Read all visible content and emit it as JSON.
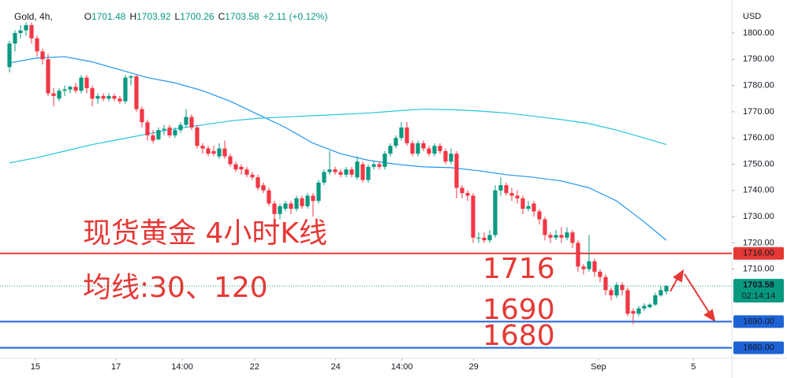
{
  "chart_data": {
    "type": "candlestick",
    "symbol": "Gold, 4h,",
    "ohlc_header": [
      {
        "label": "O",
        "value": "1701.48"
      },
      {
        "label": "H",
        "value": "1703.92"
      },
      {
        "label": "L",
        "value": "1700.26"
      },
      {
        "label": "C",
        "value": "1703.58"
      }
    ],
    "change": "+2.11 (+0.12%)",
    "currency": "USD",
    "up_color": "#089981",
    "down_color": "#f23645",
    "grid": false,
    "xlim": [
      -1.714,
      130.86
    ],
    "ylim": [
      1676,
      1812.6
    ],
    "yticks": [
      {
        "value": 1800,
        "label": "1800.00"
      },
      {
        "value": 1790,
        "label": "1790.00"
      },
      {
        "value": 1780,
        "label": "1780.00"
      },
      {
        "value": 1770,
        "label": "1770.00"
      },
      {
        "value": 1760,
        "label": "1760.00"
      },
      {
        "value": 1750,
        "label": "1750.00"
      },
      {
        "value": 1740,
        "label": "1740.00"
      },
      {
        "value": 1730,
        "label": "1730.00"
      },
      {
        "value": 1720,
        "label": "1720.00"
      },
      {
        "value": 1710,
        "label": "1710.00"
      }
    ],
    "xticks": [
      {
        "value": 4.7,
        "label": "15"
      },
      {
        "value": 19.3,
        "label": "17"
      },
      {
        "value": 31.3,
        "label": "14:00"
      },
      {
        "value": 44.4,
        "label": "22"
      },
      {
        "value": 59.1,
        "label": "24"
      },
      {
        "value": 71.1,
        "label": "14:00"
      },
      {
        "value": 84.1,
        "label": "29"
      },
      {
        "value": 106.7,
        "label": "Sep"
      },
      {
        "value": 123.9,
        "label": "5"
      }
    ],
    "candles": [
      [
        1787,
        1797,
        1785,
        1796
      ],
      [
        1796,
        1801,
        1793,
        1800
      ],
      [
        1800,
        1803,
        1798,
        1801
      ],
      [
        1801,
        1804,
        1799,
        1803
      ],
      [
        1803,
        1804,
        1796,
        1798
      ],
      [
        1798,
        1799,
        1791,
        1793
      ],
      [
        1793,
        1794,
        1788,
        1790
      ],
      [
        1790,
        1792,
        1776,
        1777
      ],
      [
        1777,
        1779,
        1772,
        1776
      ],
      [
        1775,
        1779,
        1774,
        1778
      ],
      [
        1778,
        1780,
        1776,
        1778.5
      ],
      [
        1778.5,
        1780,
        1777,
        1779.5
      ],
      [
        1779.5,
        1781,
        1777,
        1778
      ],
      [
        1778,
        1784,
        1777,
        1783
      ],
      [
        1783,
        1784,
        1777,
        1779
      ],
      [
        1779,
        1780,
        1772,
        1775
      ],
      [
        1775,
        1777,
        1773,
        1776
      ],
      [
        1776,
        1777,
        1774,
        1775
      ],
      [
        1775,
        1777,
        1774,
        1776
      ],
      [
        1776,
        1777,
        1774,
        1775
      ],
      [
        1775,
        1776,
        1773,
        1774
      ],
      [
        1774,
        1784,
        1773,
        1783
      ],
      [
        1783,
        1784,
        1780,
        1783.5
      ],
      [
        1783.5,
        1784,
        1770,
        1771
      ],
      [
        1771,
        1772,
        1764,
        1766
      ],
      [
        1766,
        1767,
        1759,
        1761
      ],
      [
        1761,
        1763,
        1758,
        1759
      ],
      [
        1759.5,
        1764,
        1759,
        1763
      ],
      [
        1763,
        1765,
        1761,
        1763.5
      ],
      [
        1764,
        1765,
        1760,
        1761
      ],
      [
        1761,
        1764,
        1760,
        1763
      ],
      [
        1763,
        1766,
        1762,
        1765
      ],
      [
        1765,
        1771,
        1764,
        1768
      ],
      [
        1768,
        1769,
        1763,
        1764
      ],
      [
        1764,
        1765,
        1756,
        1757
      ],
      [
        1757,
        1758,
        1754,
        1756
      ],
      [
        1756,
        1757,
        1753,
        1754
      ],
      [
        1755,
        1757,
        1753,
        1754
      ],
      [
        1753,
        1758,
        1752,
        1756
      ],
      [
        1756,
        1759,
        1752,
        1753
      ],
      [
        1753,
        1754,
        1749,
        1750
      ],
      [
        1750,
        1751,
        1747,
        1748
      ],
      [
        1749,
        1750,
        1746,
        1748
      ],
      [
        1748,
        1749,
        1745,
        1746
      ],
      [
        1746,
        1747,
        1744,
        1745
      ],
      [
        1745,
        1746,
        1740,
        1741
      ],
      [
        1742,
        1743,
        1739,
        1740
      ],
      [
        1740,
        1741,
        1734,
        1735
      ],
      [
        1735,
        1736,
        1728,
        1731
      ],
      [
        1731,
        1735,
        1729,
        1734
      ],
      [
        1733,
        1736,
        1732,
        1735
      ],
      [
        1735,
        1736,
        1731,
        1733
      ],
      [
        1733,
        1738,
        1732,
        1737
      ],
      [
        1737,
        1738,
        1733,
        1734
      ],
      [
        1734,
        1739,
        1733,
        1738
      ],
      [
        1738,
        1739,
        1730,
        1736
      ],
      [
        1736,
        1744,
        1735,
        1743
      ],
      [
        1743,
        1748,
        1742,
        1747
      ],
      [
        1747,
        1755,
        1746,
        1748
      ],
      [
        1748,
        1749,
        1746,
        1747
      ],
      [
        1747,
        1748,
        1745,
        1746
      ],
      [
        1746,
        1749,
        1745,
        1748
      ],
      [
        1748,
        1749,
        1745,
        1746
      ],
      [
        1745,
        1753,
        1744,
        1751
      ],
      [
        1750,
        1751,
        1743,
        1744
      ],
      [
        1744,
        1750,
        1743,
        1749
      ],
      [
        1749,
        1751,
        1748,
        1750
      ],
      [
        1750,
        1751,
        1748,
        1749
      ],
      [
        1749,
        1755,
        1748,
        1754
      ],
      [
        1754,
        1758,
        1753,
        1757
      ],
      [
        1757,
        1761,
        1756,
        1760
      ],
      [
        1760,
        1766,
        1759,
        1764
      ],
      [
        1764,
        1766,
        1757,
        1758
      ],
      [
        1758,
        1759,
        1753,
        1754
      ],
      [
        1754,
        1759,
        1753,
        1758
      ],
      [
        1758,
        1759,
        1755,
        1756
      ],
      [
        1756,
        1757,
        1753,
        1754
      ],
      [
        1754,
        1758,
        1753,
        1757
      ],
      [
        1757,
        1758,
        1754,
        1755
      ],
      [
        1755,
        1756,
        1750,
        1751
      ],
      [
        1751,
        1756,
        1750,
        1754
      ],
      [
        1754,
        1755,
        1737,
        1741
      ],
      [
        1741,
        1742,
        1737,
        1739
      ],
      [
        1739,
        1740,
        1736,
        1738
      ],
      [
        1738,
        1739,
        1720,
        1722
      ],
      [
        1722,
        1724,
        1720,
        1722
      ],
      [
        1722,
        1724,
        1720,
        1721
      ],
      [
        1721,
        1725,
        1720,
        1723
      ],
      [
        1723,
        1742,
        1722,
        1740
      ],
      [
        1740,
        1745,
        1738,
        1742
      ],
      [
        1742,
        1743,
        1738,
        1739
      ],
      [
        1739,
        1741,
        1736,
        1738
      ],
      [
        1738,
        1740,
        1735,
        1737
      ],
      [
        1737,
        1738,
        1731,
        1733
      ],
      [
        1733,
        1736,
        1732,
        1734
      ],
      [
        1735,
        1736,
        1730,
        1732
      ],
      [
        1732,
        1733,
        1727,
        1729
      ],
      [
        1729,
        1730,
        1721,
        1723
      ],
      [
        1723,
        1724,
        1720,
        1722
      ],
      [
        1722,
        1725,
        1721,
        1723
      ],
      [
        1723,
        1726,
        1720,
        1722
      ],
      [
        1722,
        1726,
        1721,
        1724
      ],
      [
        1724,
        1725,
        1718,
        1720
      ],
      [
        1720,
        1721,
        1709,
        1711
      ],
      [
        1711,
        1712,
        1708,
        1710
      ],
      [
        1710,
        1723,
        1709,
        1713
      ],
      [
        1713,
        1714,
        1707,
        1709
      ],
      [
        1709,
        1710,
        1705,
        1707
      ],
      [
        1707,
        1708,
        1700,
        1702
      ],
      [
        1702,
        1703,
        1698,
        1700
      ],
      [
        1700,
        1705,
        1699,
        1704
      ],
      [
        1704,
        1705,
        1700,
        1702
      ],
      [
        1702,
        1703,
        1692,
        1693
      ],
      [
        1694,
        1695,
        1689,
        1693
      ],
      [
        1693,
        1696,
        1692,
        1695
      ],
      [
        1695,
        1697,
        1694,
        1696
      ],
      [
        1695.5,
        1697,
        1695,
        1696.5
      ],
      [
        1696.5,
        1701,
        1696,
        1700
      ],
      [
        1700,
        1703.5,
        1699.5,
        1702
      ],
      [
        1701.48,
        1703.92,
        1700.26,
        1703.58
      ]
    ],
    "series": [
      {
        "color": "#2196f3",
        "x": [
          0,
          5,
          10,
          15,
          20,
          25,
          30,
          35,
          40,
          45,
          50,
          55,
          60,
          65,
          70,
          75,
          80,
          85,
          90,
          95,
          100,
          105,
          110,
          115,
          119
        ],
        "values": [
          1788.6,
          1790.5,
          1791,
          1789,
          1786,
          1783,
          1781,
          1778,
          1774,
          1769,
          1764,
          1758,
          1754,
          1751.5,
          1750,
          1749,
          1748.7,
          1747.5,
          1746,
          1745,
          1743.6,
          1741,
          1736,
          1728,
          1721
        ]
      },
      {
        "color": "#26c6da",
        "x": [
          0,
          5,
          10,
          15,
          20,
          25,
          30,
          35,
          40,
          45,
          50,
          55,
          60,
          65,
          70,
          75,
          80,
          85,
          90,
          95,
          100,
          105,
          110,
          115,
          119
        ],
        "values": [
          1750.5,
          1752.5,
          1755,
          1757.5,
          1759.5,
          1761.5,
          1763.5,
          1765,
          1766.5,
          1767.5,
          1768,
          1768.5,
          1769,
          1769.5,
          1770.3,
          1771,
          1770.8,
          1770.3,
          1769.5,
          1768.3,
          1767,
          1765.5,
          1763,
          1760,
          1757.5
        ]
      }
    ],
    "levels": [
      {
        "value": 1716,
        "label": "1716.00",
        "color": "#e53935"
      },
      {
        "value": 1690,
        "label": "1690.00",
        "color": "#1e63d6"
      },
      {
        "value": 1680,
        "label": "1680.00",
        "color": "#1e63d6"
      }
    ],
    "last_price": {
      "value": 1703.58,
      "label": "1703.58",
      "countdown": "02:14:14"
    },
    "annotations": [
      "现货黄金 4小时K线",
      "均线:30、120",
      "1716",
      "1690",
      "1680"
    ]
  }
}
